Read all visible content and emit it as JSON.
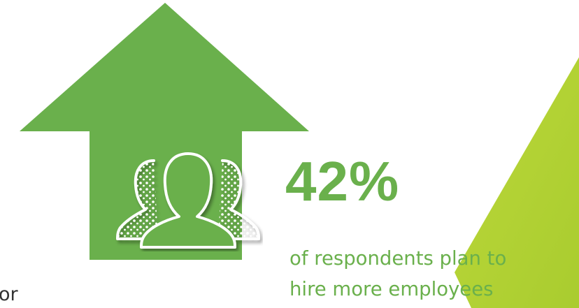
{
  "colors": {
    "arrow_green": "#6ab04c",
    "accent_lime": "#b3d334",
    "icon_outline": "#ffffff",
    "cut_text": "#333333"
  },
  "icon": {
    "name": "people-group-icon"
  },
  "stat": {
    "value": "42%",
    "caption_line1": "of respondents plan to",
    "caption_line2": "hire more employees"
  },
  "fragment": {
    "text": "or"
  }
}
